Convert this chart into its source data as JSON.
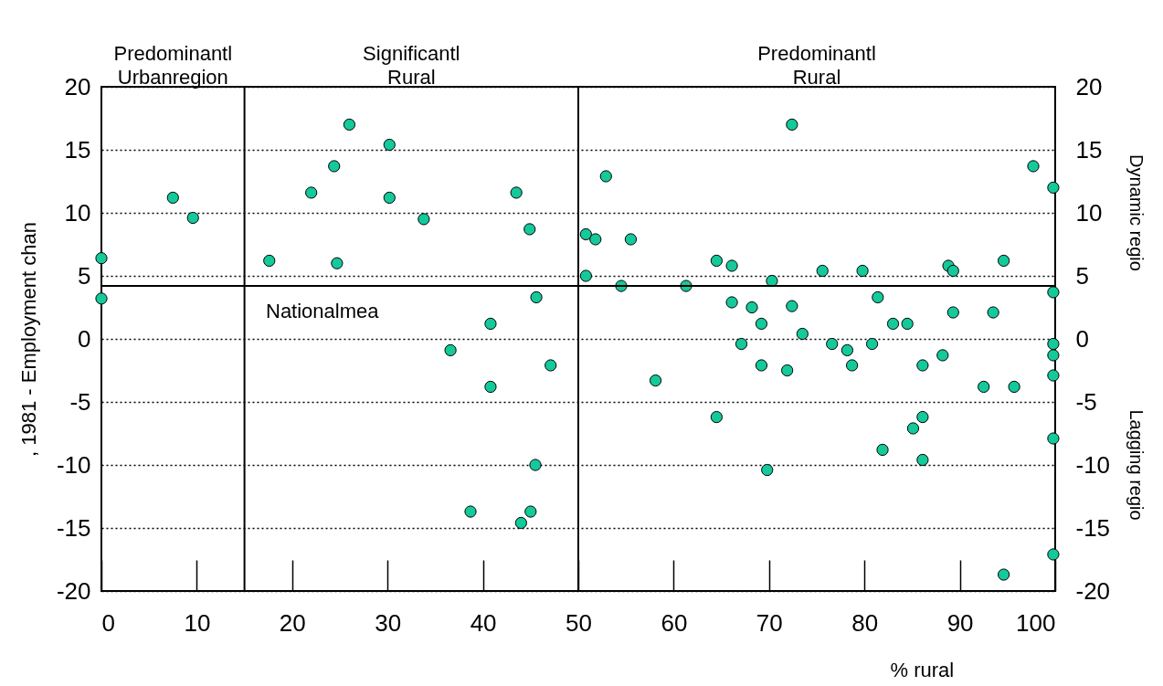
{
  "chart_data": {
    "type": "scatter",
    "xlabel": "% rural",
    "ylabel": ", 1981 - Employment chan",
    "annotations": [
      "Predominantl Urbanregion",
      "Significantl Rural",
      "Predominantl Rural",
      "Dynamic regio",
      "Lagging regio"
    ],
    "x": [
      0,
      0,
      7.5,
      9.6,
      17.6,
      22.0,
      24.4,
      24.7,
      26.0,
      30.2,
      30.2,
      33.8,
      43.5,
      44.9,
      45.6,
      40.8,
      36.6,
      40.8,
      47.1,
      45.5,
      38.7,
      45.0,
      44.0,
      50.8,
      51.8,
      50.8,
      52.9,
      55.5,
      54.5,
      61.3,
      64.5,
      66.1,
      66.1,
      68.2,
      69.2,
      70.3,
      72.4,
      72.4,
      73.5,
      75.6,
      79.8,
      81.4,
      83.0,
      84.5,
      88.8,
      89.3,
      89.3,
      93.5,
      94.6,
      97.7,
      99.8,
      99.8,
      67.1,
      76.6,
      78.2,
      80.8,
      99.8,
      99.8,
      88.2,
      69.2,
      71.9,
      78.7,
      86.1,
      99.8,
      58.1,
      92.5,
      95.7,
      64.5,
      86.1,
      85.1,
      99.8,
      81.9,
      86.1,
      69.8,
      99.8,
      94.6
    ],
    "values": [
      6.4,
      3.2,
      11.2,
      9.6,
      6.2,
      11.6,
      13.7,
      6.0,
      17.0,
      15.4,
      11.2,
      9.5,
      11.6,
      8.7,
      3.3,
      1.2,
      -0.9,
      -3.8,
      -2.1,
      -10.0,
      -13.7,
      -13.7,
      -14.6,
      8.3,
      7.9,
      5.0,
      12.9,
      7.9,
      4.2,
      4.2,
      6.2,
      5.8,
      2.9,
      2.5,
      1.2,
      4.6,
      17.0,
      2.6,
      0.4,
      5.4,
      5.4,
      3.3,
      1.2,
      1.2,
      5.8,
      5.4,
      2.1,
      2.1,
      6.2,
      13.7,
      12.0,
      3.7,
      -0.4,
      -0.4,
      -0.9,
      -0.4,
      -0.4,
      -1.3,
      -1.3,
      -2.1,
      -2.5,
      -2.1,
      -2.1,
      -2.9,
      -3.3,
      -3.8,
      -3.8,
      -6.2,
      -6.2,
      -7.1,
      -7.9,
      -8.8,
      -9.6,
      -10.4,
      -17.1,
      -18.7
    ],
    "color": "#14c99a",
    "marker": "circle",
    "grid": "y",
    "xlim": [
      0,
      100
    ],
    "xticks": [
      0,
      10,
      20,
      30,
      40,
      50,
      60,
      70,
      80,
      90,
      100
    ],
    "ylim": [
      -20,
      20
    ],
    "yticks": [
      -20,
      -15,
      -10,
      -5,
      0,
      5,
      10,
      15,
      20
    ],
    "y2lim": [
      -20,
      20
    ],
    "y2ticks": [
      -20,
      -15,
      -10,
      -5,
      0,
      5,
      10,
      15,
      20
    ],
    "ref_lines": [
      {
        "axis": "x",
        "value": 15
      },
      {
        "axis": "x",
        "value": 50
      },
      {
        "axis": "y",
        "value": 4.2,
        "label": "Nationalmea"
      }
    ]
  }
}
